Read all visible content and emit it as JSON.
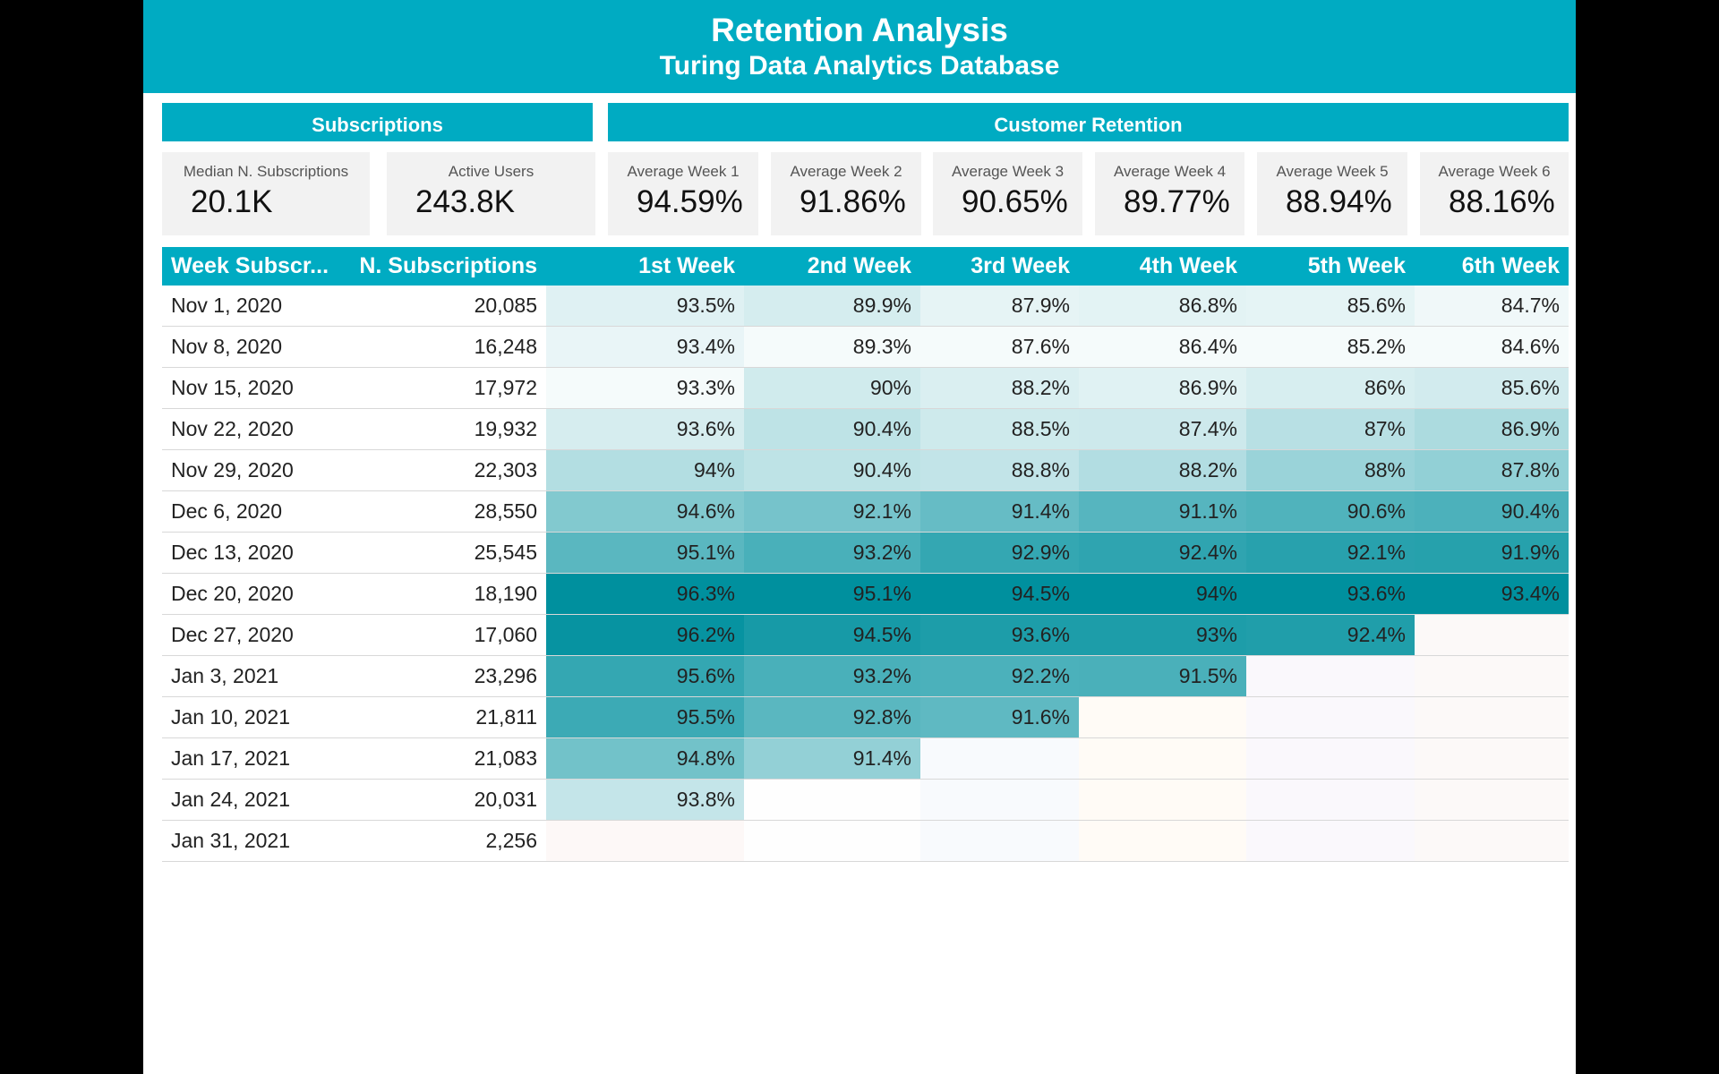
{
  "header": {
    "title": "Retention Analysis",
    "subtitle": "Turing Data Analytics Database"
  },
  "sections": {
    "subscriptions": "Subscriptions",
    "retention": "Customer Retention"
  },
  "kpis": [
    {
      "label": "Median N. Subscriptions",
      "value": "20.1K"
    },
    {
      "label": "Active Users",
      "value": "243.8K"
    },
    {
      "label": "Average Week 1",
      "value": "94.59%"
    },
    {
      "label": "Average Week 2",
      "value": "91.86%"
    },
    {
      "label": "Average Week 3",
      "value": "90.65%"
    },
    {
      "label": "Average Week 4",
      "value": "89.77%"
    },
    {
      "label": "Average Week 5",
      "value": "88.94%"
    },
    {
      "label": "Average Week 6",
      "value": "88.16%"
    }
  ],
  "table": {
    "columns": [
      "Week Subscr...",
      "N. Subscriptions",
      "1st Week",
      "2nd Week",
      "3rd Week",
      "4th Week",
      "5th Week",
      "6th Week"
    ],
    "rows": [
      {
        "date": "Nov 1, 2020",
        "subs": "20,085",
        "weeks": [
          "93.5%",
          "89.9%",
          "87.9%",
          "86.8%",
          "85.6%",
          "84.7%"
        ]
      },
      {
        "date": "Nov 8, 2020",
        "subs": "16,248",
        "weeks": [
          "93.4%",
          "89.3%",
          "87.6%",
          "86.4%",
          "85.2%",
          "84.6%"
        ]
      },
      {
        "date": "Nov 15, 2020",
        "subs": "17,972",
        "weeks": [
          "93.3%",
          "90%",
          "88.2%",
          "86.9%",
          "86%",
          "85.6%"
        ]
      },
      {
        "date": "Nov 22, 2020",
        "subs": "19,932",
        "weeks": [
          "93.6%",
          "90.4%",
          "88.5%",
          "87.4%",
          "87%",
          "86.9%"
        ]
      },
      {
        "date": "Nov 29, 2020",
        "subs": "22,303",
        "weeks": [
          "94%",
          "90.4%",
          "88.8%",
          "88.2%",
          "88%",
          "87.8%"
        ]
      },
      {
        "date": "Dec 6, 2020",
        "subs": "28,550",
        "weeks": [
          "94.6%",
          "92.1%",
          "91.4%",
          "91.1%",
          "90.6%",
          "90.4%"
        ]
      },
      {
        "date": "Dec 13, 2020",
        "subs": "25,545",
        "weeks": [
          "95.1%",
          "93.2%",
          "92.9%",
          "92.4%",
          "92.1%",
          "91.9%"
        ]
      },
      {
        "date": "Dec 20, 2020",
        "subs": "18,190",
        "weeks": [
          "96.3%",
          "95.1%",
          "94.5%",
          "94%",
          "93.6%",
          "93.4%"
        ]
      },
      {
        "date": "Dec 27, 2020",
        "subs": "17,060",
        "weeks": [
          "96.2%",
          "94.5%",
          "93.6%",
          "93%",
          "92.4%",
          ""
        ]
      },
      {
        "date": "Jan 3, 2021",
        "subs": "23,296",
        "weeks": [
          "95.6%",
          "93.2%",
          "92.2%",
          "91.5%",
          "",
          ""
        ]
      },
      {
        "date": "Jan 10, 2021",
        "subs": "21,811",
        "weeks": [
          "95.5%",
          "92.8%",
          "91.6%",
          "",
          "",
          ""
        ]
      },
      {
        "date": "Jan 17, 2021",
        "subs": "21,083",
        "weeks": [
          "94.8%",
          "91.4%",
          "",
          "",
          "",
          ""
        ]
      },
      {
        "date": "Jan 24, 2021",
        "subs": "20,031",
        "weeks": [
          "93.8%",
          "",
          "",
          "",
          "",
          ""
        ]
      },
      {
        "date": "Jan 31, 2021",
        "subs": "2,256",
        "weeks": [
          "",
          "",
          "",
          "",
          "",
          ""
        ]
      }
    ]
  },
  "colors": {
    "accent": "#00abc2",
    "heat_low": "#ffffff",
    "heat_high": "#00909e"
  }
}
